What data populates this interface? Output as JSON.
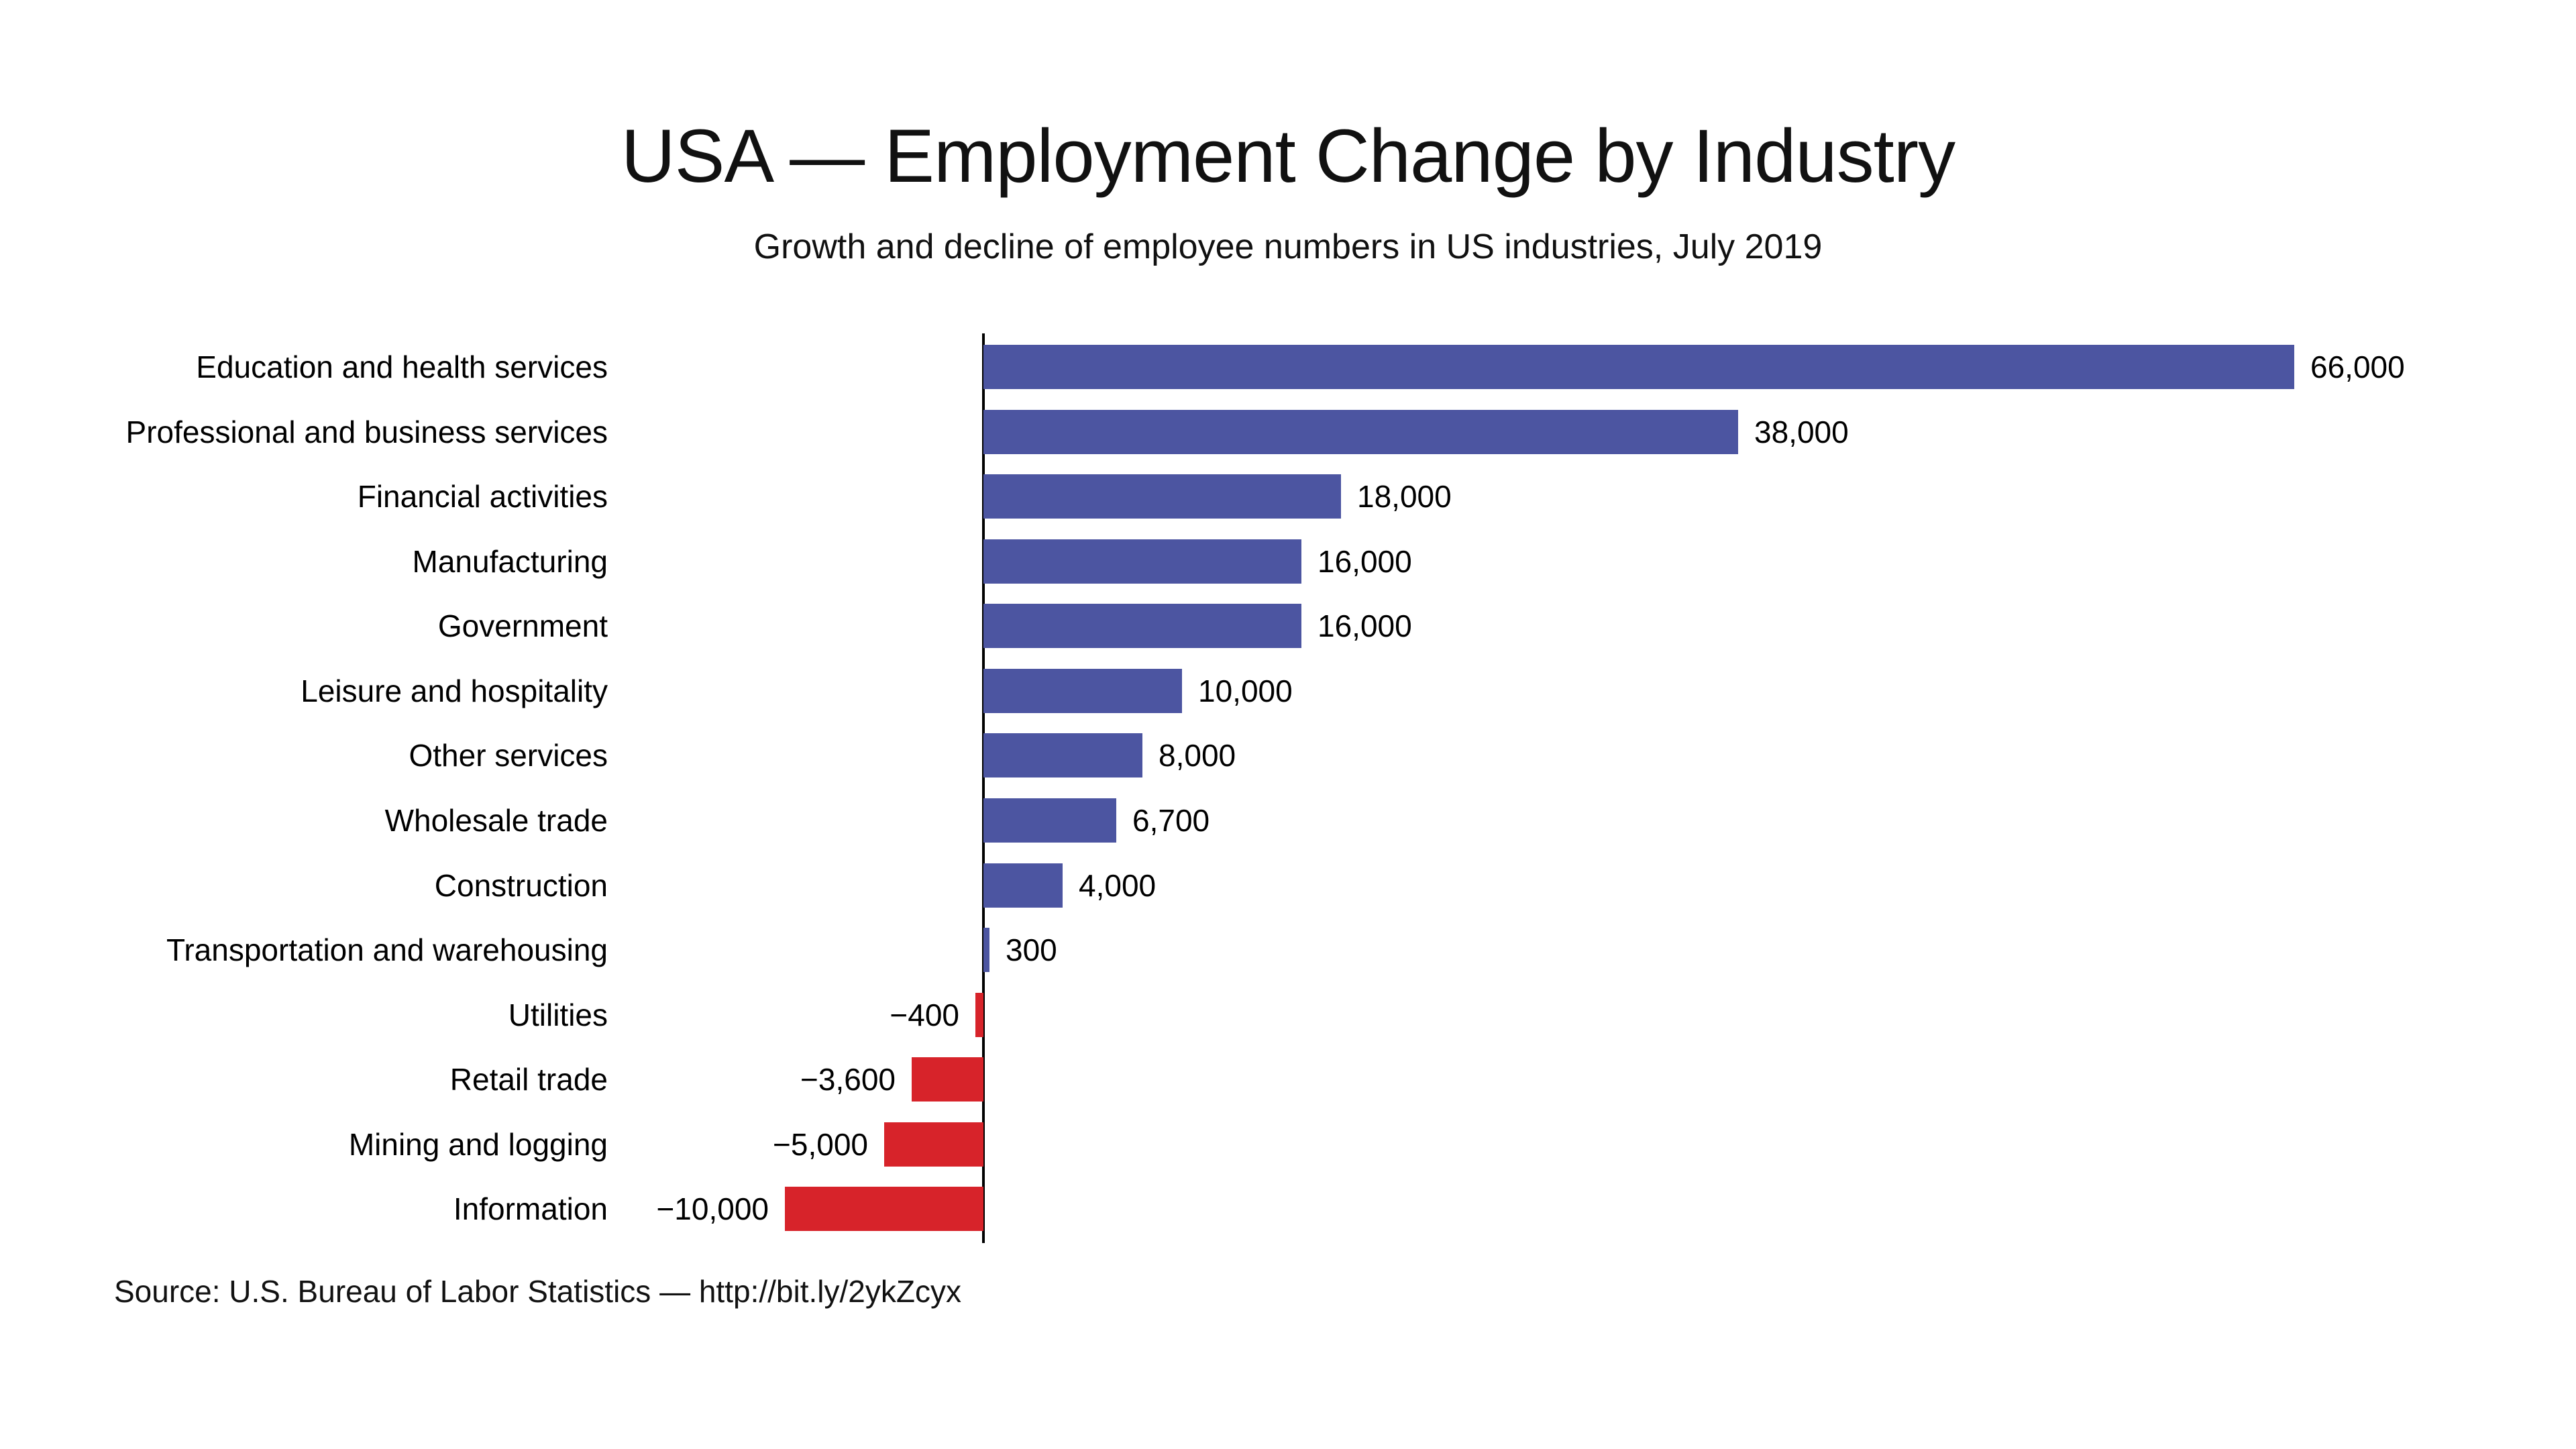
{
  "page": {
    "title": "USA — Employment Change by Industry",
    "subtitle": "Growth and decline of employee numbers in US industries, July 2019",
    "source": "Source: U.S. Bureau of Labor Statistics — http://bit.ly/2ykZcyx"
  },
  "colors": {
    "positive_bar": "#4C55A1",
    "negative_bar": "#D7232A",
    "axis": "#000000",
    "background": "#FFFFFF",
    "text": "#111111"
  },
  "chart_data": {
    "type": "bar",
    "orientation": "horizontal",
    "title": "USA — Employment Change by Industry",
    "subtitle": "Growth and decline of employee numbers in US industries, July 2019",
    "source": "Source: U.S. Bureau of Labor Statistics — http://bit.ly/2ykZcyx",
    "period": "July 2019",
    "unit": "employees",
    "grid": false,
    "legend": "none",
    "value_label_position": "outside-end",
    "zero_baseline": true,
    "xlim": [
      -12000,
      72000
    ],
    "categories": [
      "Education and health services",
      "Professional and business services",
      "Financial activities",
      "Manufacturing",
      "Government",
      "Leisure and hospitality",
      "Other services",
      "Wholesale trade",
      "Construction",
      "Transportation and warehousing",
      "Utilities",
      "Retail trade",
      "Mining and logging",
      "Information"
    ],
    "values": [
      66000,
      38000,
      18000,
      16000,
      16000,
      10000,
      8000,
      6700,
      4000,
      300,
      -400,
      -3600,
      -5000,
      -10000
    ],
    "value_labels": [
      "66,000",
      "38,000",
      "18,000",
      "16,000",
      "16,000",
      "10,000",
      "8,000",
      "6,700",
      "4,000",
      "300",
      "−400",
      "−3,600",
      "−5,000",
      "−10,000"
    ]
  }
}
